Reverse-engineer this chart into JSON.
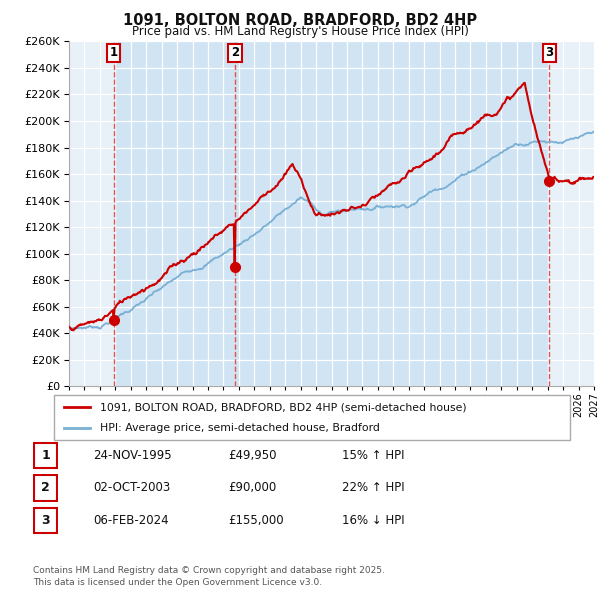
{
  "title": "1091, BOLTON ROAD, BRADFORD, BD2 4HP",
  "subtitle": "Price paid vs. HM Land Registry's House Price Index (HPI)",
  "ylim": [
    0,
    260000
  ],
  "ytick_step": 20000,
  "background_color": "#ffffff",
  "chart_bg_color": "#e8f0f8",
  "shade_color": "#d0e4f4",
  "grid_color": "#ffffff",
  "sale_dates_num": [
    1995.9,
    2003.75,
    2024.1
  ],
  "sale_prices": [
    49950,
    90000,
    155000
  ],
  "sale_labels": [
    "1",
    "2",
    "3"
  ],
  "legend_red_label": "1091, BOLTON ROAD, BRADFORD, BD2 4HP (semi-detached house)",
  "legend_blue_label": "HPI: Average price, semi-detached house, Bradford",
  "table_entries": [
    {
      "num": "1",
      "date": "24-NOV-1995",
      "price": "£49,950",
      "hpi": "15% ↑ HPI"
    },
    {
      "num": "2",
      "date": "02-OCT-2003",
      "price": "£90,000",
      "hpi": "22% ↑ HPI"
    },
    {
      "num": "3",
      "date": "06-FEB-2024",
      "price": "£155,000",
      "hpi": "16% ↓ HPI"
    }
  ],
  "footer": "Contains HM Land Registry data © Crown copyright and database right 2025.\nThis data is licensed under the Open Government Licence v3.0.",
  "red_color": "#cc0000",
  "blue_color": "#7ab0d4",
  "dashed_color": "#dd4444",
  "xmin": 1993,
  "xmax": 2027
}
